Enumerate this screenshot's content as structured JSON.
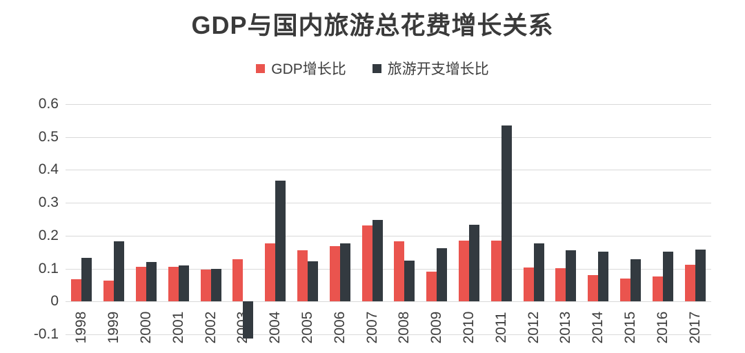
{
  "page": {
    "background": "#ffffff",
    "text_color": "#3d3d3d",
    "gridline_color": "#d9d9d9"
  },
  "chart_data": {
    "type": "bar",
    "title": "GDP与国内旅游总花费增长关系",
    "categories": [
      "1998",
      "1999",
      "2000",
      "2001",
      "2002",
      "2003",
      "2004",
      "2005",
      "2006",
      "2007",
      "2008",
      "2009",
      "2010",
      "2011",
      "2012",
      "2013",
      "2014",
      "2015",
      "2016",
      "2017"
    ],
    "series": [
      {
        "name": "GDP增长比",
        "color": "#ea544e",
        "values": [
          0.067,
          0.063,
          0.106,
          0.105,
          0.098,
          0.129,
          0.177,
          0.155,
          0.169,
          0.231,
          0.183,
          0.091,
          0.184,
          0.184,
          0.104,
          0.101,
          0.081,
          0.07,
          0.077,
          0.111
        ]
      },
      {
        "name": "旅游开支增长比",
        "color": "#333a40",
        "values": [
          0.132,
          0.182,
          0.121,
          0.109,
          0.1,
          -0.112,
          0.367,
          0.122,
          0.176,
          0.247,
          0.124,
          0.163,
          0.234,
          0.534,
          0.176,
          0.155,
          0.152,
          0.128,
          0.151,
          0.158
        ]
      }
    ],
    "xlabel": "",
    "ylabel": "",
    "ylim": [
      -0.1,
      0.6
    ],
    "yticks": [
      "0.6",
      "0.5",
      "0.4",
      "0.3",
      "0.2",
      "0.1",
      "0",
      "-0.1"
    ],
    "grid": true,
    "legend_position": "top-center",
    "gridline_color": "#d9d9d9",
    "text_color": "#3d3d3d"
  }
}
